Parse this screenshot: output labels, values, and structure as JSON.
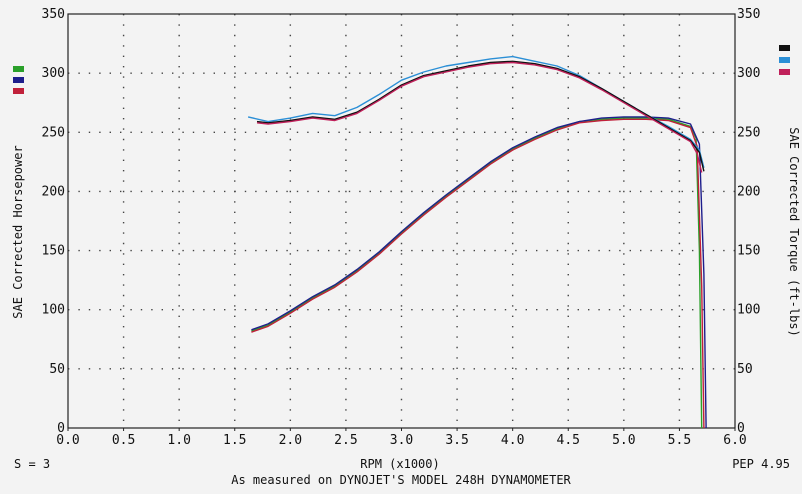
{
  "chart_data": {
    "type": "line",
    "xlabel": "RPM (x1000)",
    "ylabel_left": "SAE Corrected Horsepower",
    "ylabel_right": "SAE Corrected Torque (ft-lbs)",
    "xlim": [
      0,
      6
    ],
    "ylim": [
      0,
      350
    ],
    "x_ticks": [
      "0.0",
      "0.5",
      "1.0",
      "1.5",
      "2.0",
      "2.5",
      "3.0",
      "3.5",
      "4.0",
      "4.5",
      "5.0",
      "5.5",
      "6.0"
    ],
    "y_ticks": [
      "0",
      "50",
      "100",
      "150",
      "200",
      "250",
      "300",
      "350"
    ],
    "grid": true,
    "legend_left": [
      "#2aa02a",
      "#1e1e8c",
      "#c0203a"
    ],
    "legend_right": [
      "#111111",
      "#2b8fd6",
      "#c0205a"
    ],
    "footer": {
      "left": "S = 3",
      "center": "As measured on DYNOJET'S MODEL 248H DYNAMOMETER",
      "right": "PEP 4.95"
    },
    "series": [
      {
        "role": "horsepower",
        "color": "#2aa02a",
        "x": [
          1.65,
          1.8,
          2.0,
          2.2,
          2.4,
          2.6,
          2.8,
          3.0,
          3.2,
          3.4,
          3.6,
          3.8,
          4.0,
          4.2,
          4.4,
          4.6,
          4.8,
          5.0,
          5.2,
          5.4,
          5.6,
          5.65,
          5.68,
          5.7
        ],
        "y": [
          82,
          87,
          98,
          110,
          120,
          133,
          148,
          165,
          181,
          196,
          210,
          224,
          236,
          245,
          253,
          259,
          261,
          262,
          262,
          261,
          255,
          245,
          150,
          0
        ]
      },
      {
        "role": "horsepower",
        "color": "#1e1e8c",
        "x": [
          1.65,
          1.8,
          2.0,
          2.2,
          2.4,
          2.6,
          2.8,
          3.0,
          3.2,
          3.4,
          3.6,
          3.8,
          4.0,
          4.2,
          4.4,
          4.6,
          4.8,
          5.0,
          5.2,
          5.4,
          5.6,
          5.68,
          5.72,
          5.74
        ],
        "y": [
          83,
          88,
          99,
          111,
          121,
          134,
          149,
          166,
          182,
          197,
          211,
          225,
          237,
          246,
          254,
          259,
          262,
          263,
          263,
          262,
          257,
          240,
          130,
          0
        ]
      },
      {
        "role": "horsepower",
        "color": "#c0203a",
        "x": [
          1.65,
          1.8,
          2.0,
          2.2,
          2.4,
          2.6,
          2.8,
          3.0,
          3.2,
          3.4,
          3.6,
          3.8,
          4.0,
          4.2,
          4.4,
          4.6,
          4.8,
          5.0,
          5.2,
          5.4,
          5.6,
          5.66,
          5.7,
          5.72
        ],
        "y": [
          81,
          86,
          97,
          109,
          119,
          132,
          147,
          164,
          180,
          195,
          209,
          223,
          235,
          244,
          252,
          258,
          260,
          261,
          261,
          260,
          254,
          238,
          120,
          0
        ]
      },
      {
        "role": "torque",
        "color": "#2b8fd6",
        "x": [
          1.62,
          1.8,
          2.0,
          2.2,
          2.4,
          2.6,
          2.8,
          3.0,
          3.2,
          3.4,
          3.6,
          3.8,
          4.0,
          4.2,
          4.4,
          4.6,
          4.8,
          5.0,
          5.2,
          5.4,
          5.6,
          5.68,
          5.72
        ],
        "y": [
          263,
          259,
          262,
          266,
          264,
          271,
          282,
          294,
          301,
          306,
          309,
          312,
          314,
          310,
          306,
          298,
          287,
          276,
          265,
          255,
          244,
          235,
          220
        ]
      },
      {
        "role": "torque",
        "color": "#111111",
        "x": [
          1.7,
          1.8,
          2.0,
          2.2,
          2.4,
          2.6,
          2.8,
          3.0,
          3.2,
          3.4,
          3.6,
          3.8,
          4.0,
          4.2,
          4.4,
          4.6,
          4.8,
          5.0,
          5.2,
          5.4,
          5.6,
          5.68,
          5.72
        ],
        "y": [
          259,
          258,
          260,
          263,
          261,
          267,
          278,
          290,
          298,
          302,
          306,
          309,
          310,
          308,
          304,
          297,
          287,
          276,
          265,
          254,
          243,
          233,
          217
        ]
      },
      {
        "role": "torque",
        "color": "#c0205a",
        "x": [
          1.7,
          1.8,
          2.0,
          2.2,
          2.4,
          2.6,
          2.8,
          3.0,
          3.2,
          3.4,
          3.6,
          3.8,
          4.0,
          4.2,
          4.4,
          4.6,
          4.8,
          5.0,
          5.2,
          5.4,
          5.6,
          5.66,
          5.7
        ],
        "y": [
          258,
          257,
          259,
          262,
          260,
          266,
          277,
          289,
          297,
          301,
          305,
          308,
          309,
          307,
          303,
          296,
          286,
          275,
          264,
          253,
          242,
          232,
          216
        ]
      }
    ]
  }
}
